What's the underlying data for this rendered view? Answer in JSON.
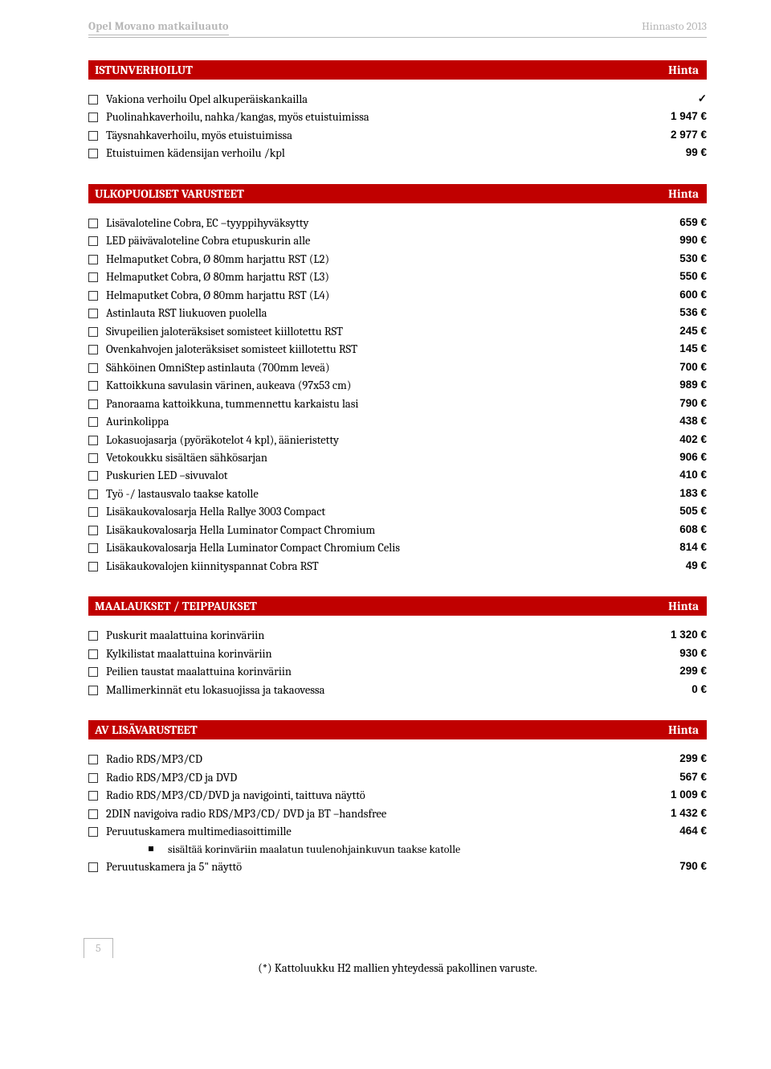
{
  "header": {
    "title": "Opel Movano matkailuauto",
    "right": "Hinnasto 2013"
  },
  "sections": [
    {
      "title": "ISTUNVERHOILUT",
      "price_label": "Hinta",
      "rows": [
        {
          "label": "Vakiona verhoilu Opel alkuperäiskankailla",
          "price": "✓",
          "check": true
        },
        {
          "label": "Puolinahkaverhoilu, nahka/kangas, myös etuistuimissa",
          "price": "1 947 €"
        },
        {
          "label": "Täysnahkaverhoilu, myös etuistuimissa",
          "price": "2 977 €"
        },
        {
          "label": "Etuistuimen kädensijan verhoilu /kpl",
          "price": "99 €"
        }
      ]
    },
    {
      "title": "ULKOPUOLISET VARUSTEET",
      "price_label": "Hinta",
      "rows": [
        {
          "label": "Lisävaloteline Cobra, EC –tyyppihyväksytty",
          "price": "659 €"
        },
        {
          "label": "LED päivävaloteline Cobra etupuskurin alle",
          "price": "990 €"
        },
        {
          "label": "Helmaputket Cobra, Ø 80mm  harjattu RST (L2)",
          "price": "530 €"
        },
        {
          "label": "Helmaputket Cobra, Ø 80mm  harjattu RST (L3)",
          "price": "550 €"
        },
        {
          "label": "Helmaputket Cobra, Ø 80mm  harjattu RST (L4)",
          "price": "600 €"
        },
        {
          "label": "Astinlauta RST liukuoven puolella",
          "price": "536 €"
        },
        {
          "label": "Sivupeilien jaloteräksiset somisteet kiillotettu RST",
          "price": "245 €"
        },
        {
          "label": "Ovenkahvojen jaloteräksiset somisteet kiillotettu RST",
          "price": "145 €"
        },
        {
          "label": "Sähköinen OmniStep astinlauta (700mm leveä)",
          "price": "700 €"
        },
        {
          "label": "Kattoikkuna savulasin värinen, aukeava (97x53 cm)",
          "price": "989 €"
        },
        {
          "label": "Panoraama kattoikkuna, tummennettu karkaistu lasi",
          "price": "790 €"
        },
        {
          "label": "Aurinkolippa",
          "price": "438 €"
        },
        {
          "label": "Lokasuojasarja (pyöräkotelot 4 kpl), äänieristetty",
          "price": "402 €"
        },
        {
          "label": "Vetokoukku sisältäen sähkösarjan",
          "price": "906 €"
        },
        {
          "label": "Puskurien LED –sivuvalot",
          "price": "410 €"
        },
        {
          "label": "Työ -/ lastausvalo taakse katolle",
          "price": "183 €"
        },
        {
          "label": " Lisäkaukovalosarja Hella Rallye 3003 Compact",
          "price": "505 €"
        },
        {
          "label": "Lisäkaukovalosarja Hella Luminator Compact Chromium",
          "price": "608 €"
        },
        {
          "label": "Lisäkaukovalosarja Hella Luminator Compact Chromium Celis",
          "price": "814 €"
        },
        {
          "label": "Lisäkaukovalojen kiinnityspannat Cobra RST",
          "price": "49 €"
        }
      ]
    },
    {
      "title": "MAALAUKSET / TEIPPAUKSET",
      "price_label": "Hinta",
      "rows": [
        {
          "label": "Puskurit maalattuina korinväriin",
          "price": "1 320 €"
        },
        {
          "label": "Kylkilistat maalattuina korinväriin",
          "price": "930 €"
        },
        {
          "label": "Peilien taustat maalattuina korinväriin",
          "price": "299 €"
        },
        {
          "label": "Mallimerkinnät etu lokasuojissa ja takaovessa",
          "price": "0 €"
        }
      ]
    },
    {
      "title": "AV LISÄVARUSTEET",
      "price_label": "Hinta",
      "rows": [
        {
          "label": "Radio RDS/MP3/CD",
          "price": "299 €"
        },
        {
          "label": "Radio RDS/MP3/CD ja DVD",
          "price": "567 €"
        },
        {
          "label": "Radio RDS/MP3/CD/DVD ja navigointi, taittuva näyttö",
          "price": "1 009 €"
        },
        {
          "label": "2DIN navigoiva radio RDS/MP3/CD/ DVD ja BT –handsfree",
          "price": "1 432 €"
        },
        {
          "label": "Peruutuskamera multimediasoittimille",
          "price": "464 €"
        },
        {
          "sublabel": "sisältää korinväriin maalatun tuulenohjainkuvun taakse katolle",
          "bullet": true
        },
        {
          "label": "Peruutuskamera ja 5\" näyttö",
          "price": "790 €"
        }
      ]
    }
  ],
  "footer": {
    "page_number": "5",
    "note": "(*) Kattoluukku H2 mallien yhteydessä pakollinen varuste."
  },
  "colors": {
    "header_bg": "#c00000",
    "header_text": "#ffffff",
    "muted": "#b7b7b7"
  }
}
